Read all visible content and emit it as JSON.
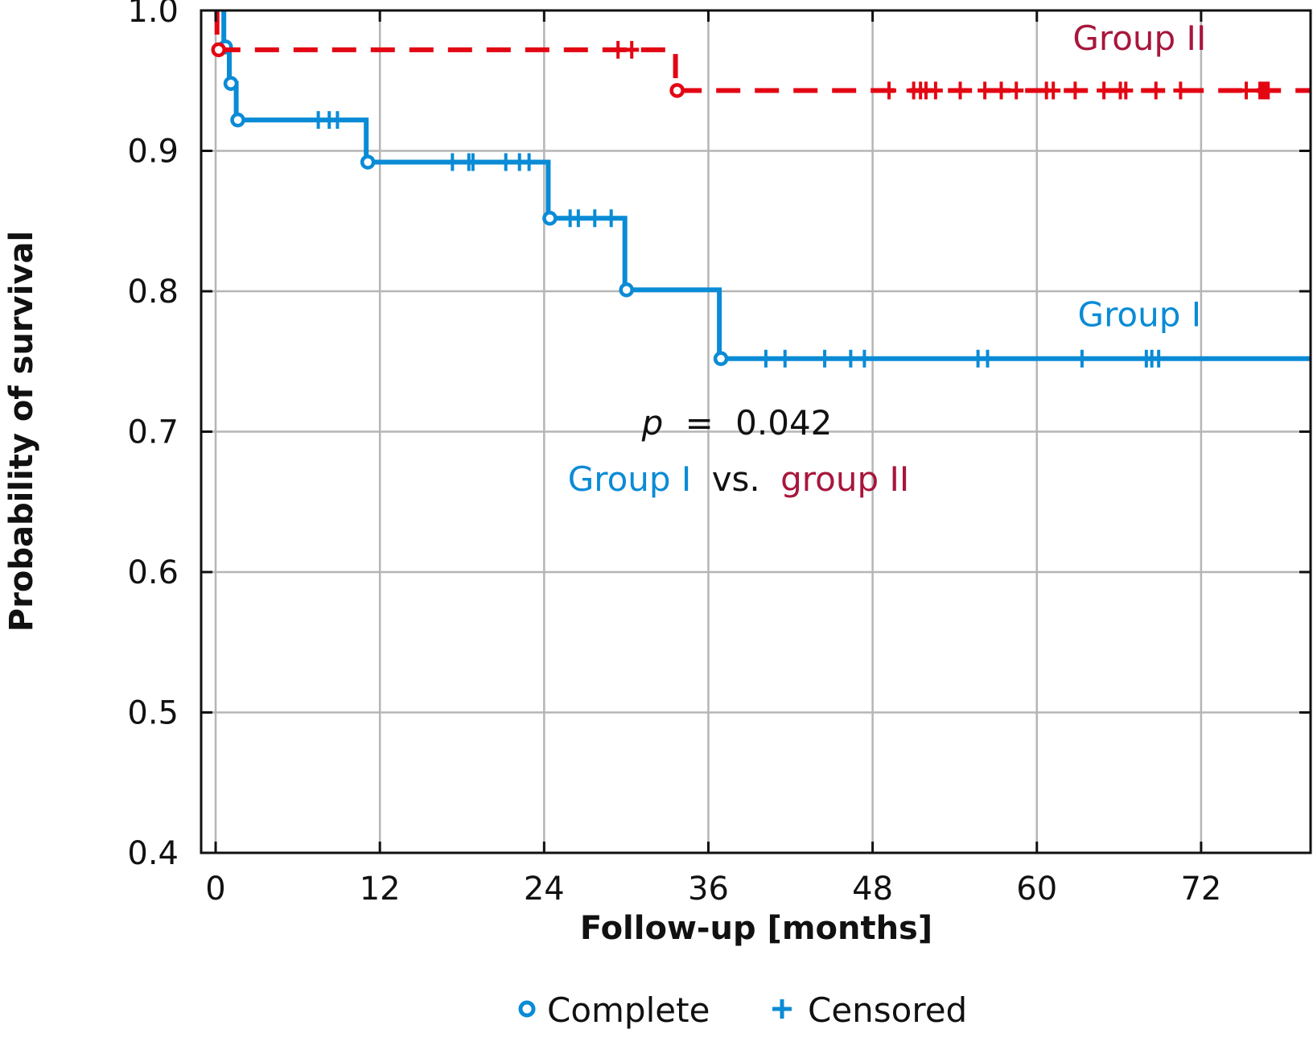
{
  "chart_data": {
    "type": "line",
    "subtype": "kaplan-meier",
    "title": "",
    "xlabel": "Follow-up [months]",
    "ylabel": "Probability of survival",
    "xlim": [
      -1.06,
      80
    ],
    "ylim": [
      0.4,
      1.0
    ],
    "xticks": [
      0,
      12,
      24,
      36,
      48,
      60,
      72
    ],
    "xtick_labels": [
      "0",
      "12",
      "24",
      "36",
      "48",
      "60",
      "72"
    ],
    "yticks": [
      0.4,
      0.5,
      0.6,
      0.7,
      0.8,
      0.9,
      1.0
    ],
    "ytick_labels": [
      "0.4",
      "0.5",
      "0.6",
      "0.7",
      "0.8",
      "0.9",
      "1.0"
    ],
    "grid": true,
    "series": [
      {
        "name": "Group I",
        "label": "Group I",
        "color": "#0a8bd6",
        "label_color": "#0a8bd6",
        "line_style": "solid",
        "label_position": {
          "x": 67.5,
          "y": 0.775
        },
        "steps": [
          {
            "t": 0.6,
            "s": 1.0
          },
          {
            "t": 1.0,
            "s": 0.974
          },
          {
            "t": 1.5,
            "s": 0.948
          },
          {
            "t": 11.0,
            "s": 0.922
          },
          {
            "t": 24.3,
            "s": 0.892
          },
          {
            "t": 29.9,
            "s": 0.852
          },
          {
            "t": 36.8,
            "s": 0.801
          }
        ],
        "events": [
          {
            "t": 0.6,
            "s": 0.974
          },
          {
            "t": 1.0,
            "s": 0.948
          },
          {
            "t": 1.5,
            "s": 0.922
          },
          {
            "t": 11.0,
            "s": 0.892
          },
          {
            "t": 24.3,
            "s": 0.852
          },
          {
            "t": 29.9,
            "s": 0.801
          },
          {
            "t": 36.8,
            "s": 0.752
          }
        ],
        "end": {
          "t": 80.0,
          "s": 0.752
        },
        "censored": [
          {
            "t": 7.5,
            "s": 0.922
          },
          {
            "t": 8.3,
            "s": 0.922
          },
          {
            "t": 8.9,
            "s": 0.922
          },
          {
            "t": 17.3,
            "s": 0.892
          },
          {
            "t": 18.5,
            "s": 0.892
          },
          {
            "t": 18.8,
            "s": 0.892
          },
          {
            "t": 21.2,
            "s": 0.892
          },
          {
            "t": 22.2,
            "s": 0.892
          },
          {
            "t": 22.9,
            "s": 0.892
          },
          {
            "t": 25.9,
            "s": 0.852
          },
          {
            "t": 26.5,
            "s": 0.852
          },
          {
            "t": 27.7,
            "s": 0.852
          },
          {
            "t": 28.9,
            "s": 0.852
          },
          {
            "t": 40.2,
            "s": 0.752
          },
          {
            "t": 41.6,
            "s": 0.752
          },
          {
            "t": 44.5,
            "s": 0.752
          },
          {
            "t": 46.4,
            "s": 0.752
          },
          {
            "t": 47.4,
            "s": 0.752
          },
          {
            "t": 55.7,
            "s": 0.752
          },
          {
            "t": 56.4,
            "s": 0.752
          },
          {
            "t": 63.3,
            "s": 0.752
          },
          {
            "t": 68.0,
            "s": 0.752
          },
          {
            "t": 68.4,
            "s": 0.752
          },
          {
            "t": 68.9,
            "s": 0.752
          }
        ]
      },
      {
        "name": "Group II",
        "label": "Group II",
        "color": "#e30613",
        "label_color": "#a8163c",
        "line_style": "dashed",
        "label_position": {
          "x": 67.5,
          "y": 0.972
        },
        "events": [
          {
            "t": 0.1,
            "s": 0.972
          },
          {
            "t": 33.6,
            "s": 0.943
          }
        ],
        "end": {
          "t": 80.0,
          "s": 0.943
        },
        "censored": [
          {
            "t": 29.4,
            "s": 0.972
          },
          {
            "t": 30.4,
            "s": 0.972
          },
          {
            "t": 49.2,
            "s": 0.943
          },
          {
            "t": 51.0,
            "s": 0.943
          },
          {
            "t": 51.5,
            "s": 0.943
          },
          {
            "t": 51.9,
            "s": 0.943
          },
          {
            "t": 52.6,
            "s": 0.943
          },
          {
            "t": 54.4,
            "s": 0.943
          },
          {
            "t": 56.2,
            "s": 0.943
          },
          {
            "t": 57.4,
            "s": 0.943
          },
          {
            "t": 58.5,
            "s": 0.943
          },
          {
            "t": 60.7,
            "s": 0.943
          },
          {
            "t": 61.2,
            "s": 0.943
          },
          {
            "t": 62.8,
            "s": 0.943
          },
          {
            "t": 64.9,
            "s": 0.943
          },
          {
            "t": 66.1,
            "s": 0.943
          },
          {
            "t": 66.5,
            "s": 0.943
          },
          {
            "t": 68.7,
            "s": 0.943
          },
          {
            "t": 70.5,
            "s": 0.943
          },
          {
            "t": 75.3,
            "s": 0.943
          },
          {
            "t": 76.3,
            "s": 0.943
          },
          {
            "t": 76.5,
            "s": 0.943
          },
          {
            "t": 76.7,
            "s": 0.943
          },
          {
            "t": 76.9,
            "s": 0.943
          }
        ]
      }
    ],
    "annotations": {
      "p_label": "p",
      "p_equals": "=",
      "p_value": "0.042",
      "comparison_group1": "Group I",
      "comparison_vs": "vs.",
      "comparison_group2": "group II",
      "position": {
        "x": 37.5,
        "y": 0.69
      }
    },
    "legend": {
      "placement": "bottom-center",
      "items": [
        {
          "symbol": "circle",
          "label": "Complete",
          "color": "#0a8bd6"
        },
        {
          "symbol": "plus",
          "label": "Censored",
          "color": "#0a8bd6"
        }
      ]
    },
    "colors": {
      "grid": "#b5b5b5",
      "axis": "#111111",
      "text": "#111111"
    }
  }
}
